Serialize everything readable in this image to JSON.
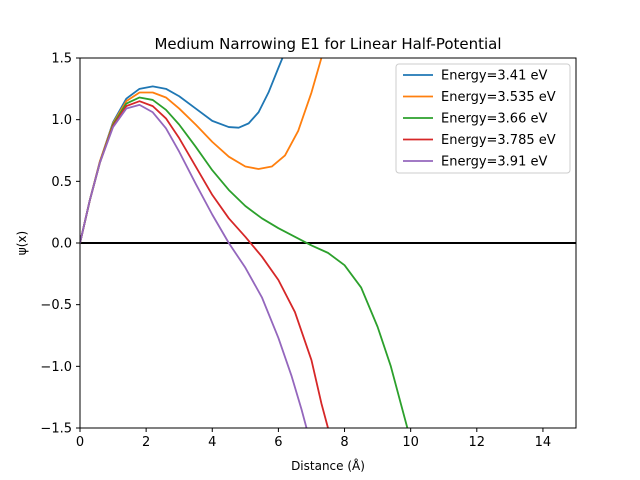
{
  "chart_data": {
    "type": "line",
    "title": "Medium Narrowing E1 for Linear Half-Potential",
    "xlabel": "Distance (Å)",
    "ylabel": "ψ(x)",
    "xlim": [
      0,
      15
    ],
    "ylim": [
      -1.5,
      1.5
    ],
    "xticks": [
      "0",
      "2",
      "4",
      "6",
      "8",
      "10",
      "12",
      "14"
    ],
    "yticks": [
      "−1.5",
      "−1.0",
      "−0.5",
      "0.0",
      "0.5",
      "1.0",
      "1.5"
    ],
    "xtick_values": [
      0,
      2,
      4,
      6,
      8,
      10,
      12,
      14
    ],
    "ytick_values": [
      -1.5,
      -1.0,
      -0.5,
      0.0,
      0.5,
      1.0,
      1.5
    ],
    "grid": false,
    "legend_position": "upper right",
    "zero_line": {
      "y": 0,
      "color": "#000000"
    },
    "series": [
      {
        "name": "Energy=3.41 eV",
        "color": "#1f77b4",
        "x": [
          0,
          0.3,
          0.6,
          1.0,
          1.4,
          1.8,
          2.2,
          2.6,
          3.0,
          3.5,
          4.0,
          4.5,
          4.8,
          5.1,
          5.4,
          5.7,
          6.0,
          6.2,
          6.4
        ],
        "y": [
          0,
          0.35,
          0.66,
          0.98,
          1.17,
          1.25,
          1.27,
          1.25,
          1.19,
          1.09,
          0.99,
          0.94,
          0.935,
          0.97,
          1.06,
          1.22,
          1.42,
          1.55,
          1.65
        ]
      },
      {
        "name": "Energy=3.535 eV",
        "color": "#ff7f0e",
        "x": [
          0,
          0.3,
          0.6,
          1.0,
          1.4,
          1.8,
          2.2,
          2.6,
          3.0,
          3.5,
          4.0,
          4.5,
          5.0,
          5.4,
          5.8,
          6.2,
          6.6,
          7.0,
          7.3,
          7.6
        ],
        "y": [
          0,
          0.35,
          0.66,
          0.97,
          1.15,
          1.22,
          1.22,
          1.18,
          1.09,
          0.96,
          0.82,
          0.7,
          0.62,
          0.6,
          0.62,
          0.71,
          0.91,
          1.22,
          1.5,
          1.7
        ]
      },
      {
        "name": "Energy=3.66 eV",
        "color": "#2ca02c",
        "x": [
          0,
          0.3,
          0.6,
          1.0,
          1.4,
          1.8,
          2.2,
          2.6,
          3.0,
          3.5,
          4.0,
          4.5,
          5.0,
          5.5,
          6.0,
          6.5,
          7.0,
          7.5,
          8.0,
          8.5,
          9.0,
          9.4,
          9.7,
          9.9,
          10.0
        ],
        "y": [
          0,
          0.35,
          0.65,
          0.96,
          1.13,
          1.18,
          1.16,
          1.08,
          0.96,
          0.78,
          0.59,
          0.43,
          0.3,
          0.2,
          0.12,
          0.05,
          -0.02,
          -0.08,
          -0.18,
          -0.36,
          -0.68,
          -1.0,
          -1.3,
          -1.5,
          -1.65
        ]
      },
      {
        "name": "Energy=3.785 eV",
        "color": "#d62728",
        "x": [
          0,
          0.3,
          0.6,
          1.0,
          1.4,
          1.8,
          2.2,
          2.6,
          3.0,
          3.5,
          4.0,
          4.5,
          5.0,
          5.5,
          6.0,
          6.5,
          7.0,
          7.3,
          7.5,
          7.6
        ],
        "y": [
          0,
          0.35,
          0.65,
          0.95,
          1.11,
          1.15,
          1.11,
          1.01,
          0.85,
          0.62,
          0.39,
          0.2,
          0.05,
          -0.11,
          -0.3,
          -0.56,
          -0.95,
          -1.3,
          -1.5,
          -1.62
        ]
      },
      {
        "name": "Energy=3.91 eV",
        "color": "#9467bd",
        "x": [
          0,
          0.3,
          0.6,
          1.0,
          1.4,
          1.8,
          2.2,
          2.6,
          3.0,
          3.5,
          4.0,
          4.5,
          5.0,
          5.5,
          6.0,
          6.4,
          6.7,
          6.85,
          6.95
        ],
        "y": [
          0,
          0.35,
          0.65,
          0.94,
          1.09,
          1.12,
          1.06,
          0.93,
          0.74,
          0.48,
          0.23,
          0.0,
          -0.2,
          -0.44,
          -0.77,
          -1.08,
          -1.35,
          -1.5,
          -1.6
        ]
      }
    ]
  }
}
